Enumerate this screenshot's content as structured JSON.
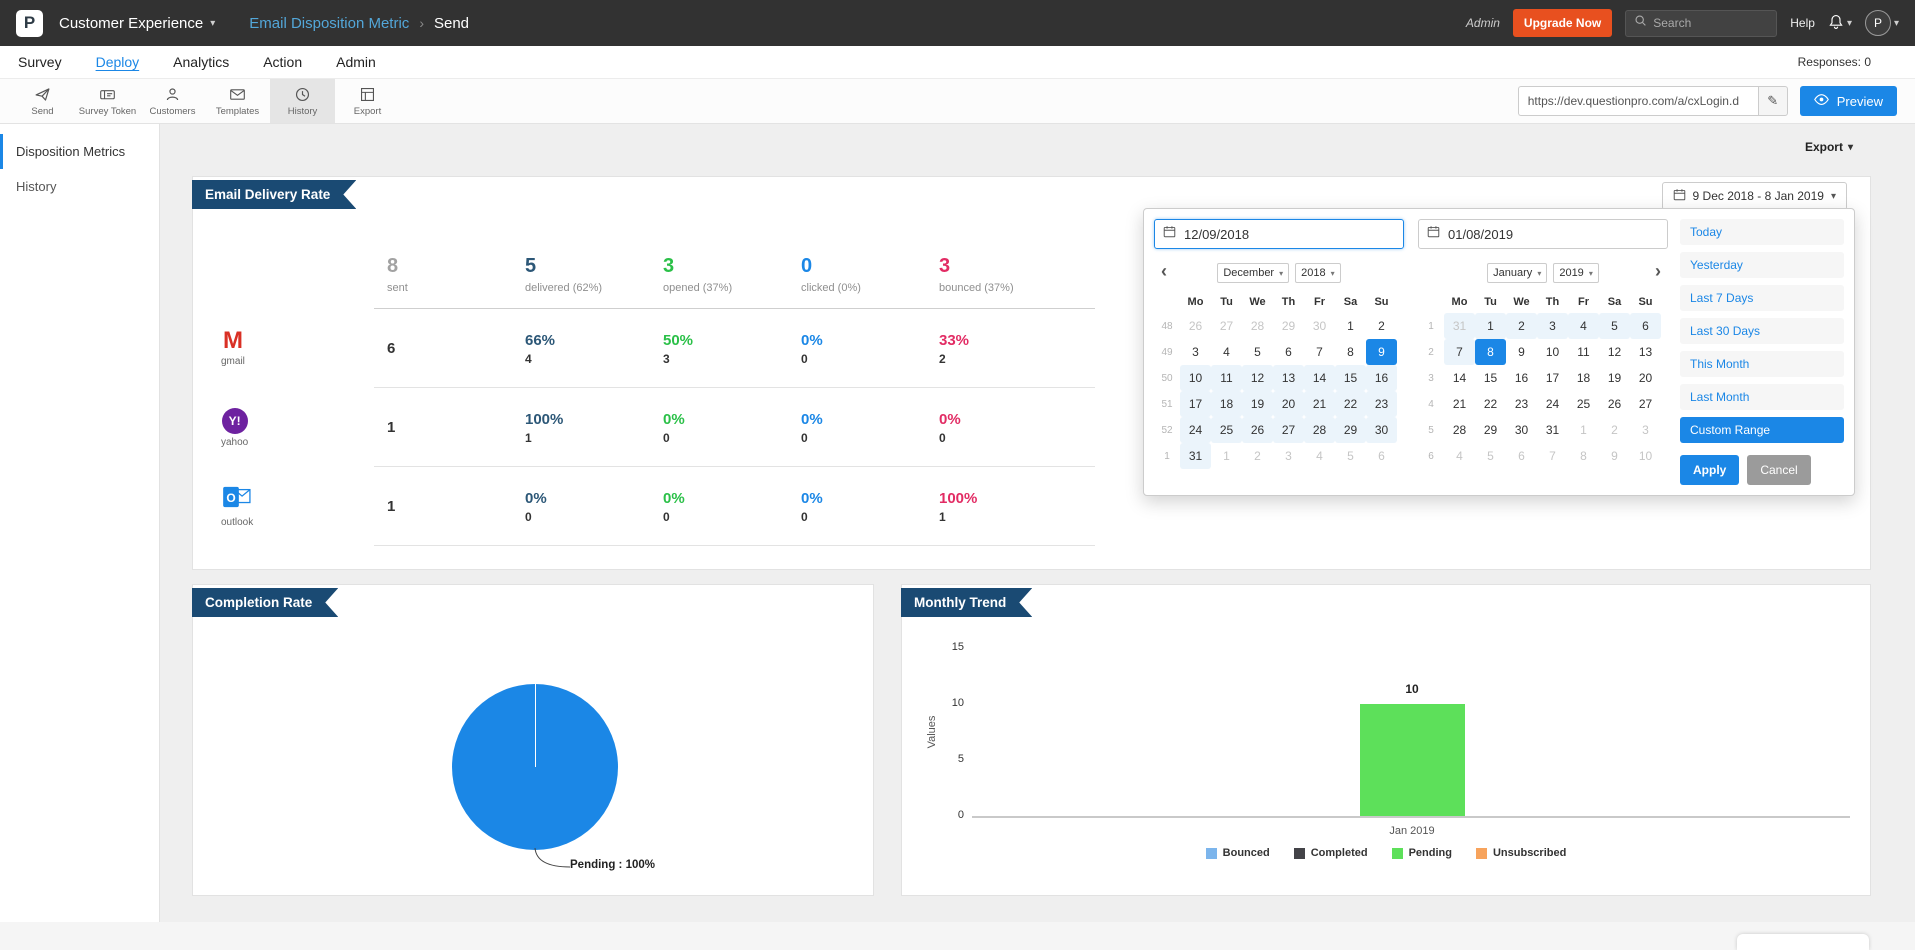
{
  "colors": {
    "accent": "#1b87e6",
    "header_bg": "#323232",
    "upgrade_orange": "#e8501f",
    "ribbon_navy": "#1a4a73",
    "sent_gray": "#a2a2a2",
    "delivered_navy": "#2c5777",
    "opened_green": "#2bc048",
    "clicked_blue": "#1b87e6",
    "bounced_pink": "#e22c64",
    "pie_blue": "#1b87e6",
    "bar_green": "#5de05a"
  },
  "header": {
    "logo_letter": "P",
    "product": "Customer Experience",
    "breadcrumb_title": "Email Disposition Metric",
    "breadcrumb_current": "Send",
    "admin_label": "Admin",
    "upgrade_label": "Upgrade Now",
    "search_placeholder": "Search",
    "help_label": "Help",
    "avatar_initial": "P",
    "icons": [
      "search-icon",
      "bell-icon",
      "avatar",
      "caret-down-icon"
    ]
  },
  "nav": {
    "items": [
      "Survey",
      "Deploy",
      "Analytics",
      "Action",
      "Admin"
    ],
    "active": "Deploy",
    "responses_label": "Responses: 0"
  },
  "toolbar": {
    "items": [
      {
        "label": "Send",
        "icon": "send-icon"
      },
      {
        "label": "Survey Token",
        "icon": "survey-token-icon"
      },
      {
        "label": "Customers",
        "icon": "customers-icon"
      },
      {
        "label": "Templates",
        "icon": "templates-icon"
      },
      {
        "label": "History",
        "icon": "history-icon"
      },
      {
        "label": "Export",
        "icon": "export-icon"
      }
    ],
    "active": "History",
    "url_value": "https://dev.questionpro.com/a/cxLogin.d",
    "preview_label": "Preview"
  },
  "sidebar": {
    "items": [
      "Disposition Metrics",
      "History"
    ],
    "active": "Disposition Metrics"
  },
  "page": {
    "export_label": "Export"
  },
  "delivery": {
    "title": "Email Delivery Rate",
    "date_range_label": "9 Dec 2018 - 8 Jan 2019",
    "summary": [
      {
        "value": "8",
        "label": "sent",
        "cls": "c-sent"
      },
      {
        "value": "5",
        "label": "delivered (62%)",
        "cls": "c-delivered"
      },
      {
        "value": "3",
        "label": "opened (37%)",
        "cls": "c-opened"
      },
      {
        "value": "0",
        "label": "clicked (0%)",
        "cls": "c-clicked"
      },
      {
        "value": "3",
        "label": "bounced (37%)",
        "cls": "c-bounced"
      }
    ],
    "metric_classes": [
      "c-delivered",
      "c-opened",
      "c-clicked",
      "c-bounced"
    ],
    "rows": [
      {
        "provider": "gmail",
        "icon": "gmail-icon",
        "sent": "6",
        "metrics": [
          {
            "pct": "66%",
            "count": "4"
          },
          {
            "pct": "50%",
            "count": "3"
          },
          {
            "pct": "0%",
            "count": "0"
          },
          {
            "pct": "33%",
            "count": "2"
          }
        ]
      },
      {
        "provider": "yahoo",
        "icon": "yahoo-icon",
        "sent": "1",
        "metrics": [
          {
            "pct": "100%",
            "count": "1"
          },
          {
            "pct": "0%",
            "count": "0"
          },
          {
            "pct": "0%",
            "count": "0"
          },
          {
            "pct": "0%",
            "count": "0"
          }
        ]
      },
      {
        "provider": "outlook",
        "icon": "outlook-icon",
        "sent": "1",
        "metrics": [
          {
            "pct": "0%",
            "count": "0"
          },
          {
            "pct": "0%",
            "count": "0"
          },
          {
            "pct": "0%",
            "count": "0"
          },
          {
            "pct": "100%",
            "count": "1"
          }
        ]
      }
    ]
  },
  "datepicker": {
    "start_value": "12/09/2018",
    "end_value": "01/08/2019",
    "day_headers": [
      "Mo",
      "Tu",
      "We",
      "Th",
      "Fr",
      "Sa",
      "Su"
    ],
    "left": {
      "month": "December",
      "year": "2018",
      "weeks": [
        {
          "w": "48",
          "days": [
            [
              "26",
              "m"
            ],
            [
              "27",
              "m"
            ],
            [
              "28",
              "m"
            ],
            [
              "29",
              "m"
            ],
            [
              "30",
              "m"
            ],
            [
              "1",
              ""
            ],
            [
              "2",
              ""
            ]
          ]
        },
        {
          "w": "49",
          "days": [
            [
              "3",
              ""
            ],
            [
              "4",
              ""
            ],
            [
              "5",
              ""
            ],
            [
              "6",
              ""
            ],
            [
              "7",
              ""
            ],
            [
              "8",
              ""
            ],
            [
              "9",
              "s"
            ]
          ]
        },
        {
          "w": "50",
          "days": [
            [
              "10",
              "r"
            ],
            [
              "11",
              "r"
            ],
            [
              "12",
              "r"
            ],
            [
              "13",
              "r"
            ],
            [
              "14",
              "r"
            ],
            [
              "15",
              "r"
            ],
            [
              "16",
              "r"
            ]
          ]
        },
        {
          "w": "51",
          "days": [
            [
              "17",
              "r"
            ],
            [
              "18",
              "r"
            ],
            [
              "19",
              "r"
            ],
            [
              "20",
              "r"
            ],
            [
              "21",
              "r"
            ],
            [
              "22",
              "r"
            ],
            [
              "23",
              "r"
            ]
          ]
        },
        {
          "w": "52",
          "days": [
            [
              "24",
              "r"
            ],
            [
              "25",
              "r"
            ],
            [
              "26",
              "r"
            ],
            [
              "27",
              "r"
            ],
            [
              "28",
              "r"
            ],
            [
              "29",
              "r"
            ],
            [
              "30",
              "r"
            ]
          ]
        },
        {
          "w": "1",
          "days": [
            [
              "31",
              "r"
            ],
            [
              "1",
              "m"
            ],
            [
              "2",
              "m"
            ],
            [
              "3",
              "m"
            ],
            [
              "4",
              "m"
            ],
            [
              "5",
              "m"
            ],
            [
              "6",
              "m"
            ]
          ]
        }
      ]
    },
    "right": {
      "month": "January",
      "year": "2019",
      "weeks": [
        {
          "w": "1",
          "days": [
            [
              "31",
              "mr"
            ],
            [
              "1",
              "r"
            ],
            [
              "2",
              "r"
            ],
            [
              "3",
              "r"
            ],
            [
              "4",
              "r"
            ],
            [
              "5",
              "r"
            ],
            [
              "6",
              "r"
            ]
          ]
        },
        {
          "w": "2",
          "days": [
            [
              "7",
              "r"
            ],
            [
              "8",
              "s"
            ],
            [
              "9",
              ""
            ],
            [
              "10",
              ""
            ],
            [
              "11",
              ""
            ],
            [
              "12",
              ""
            ],
            [
              "13",
              ""
            ]
          ]
        },
        {
          "w": "3",
          "days": [
            [
              "14",
              ""
            ],
            [
              "15",
              ""
            ],
            [
              "16",
              ""
            ],
            [
              "17",
              ""
            ],
            [
              "18",
              ""
            ],
            [
              "19",
              ""
            ],
            [
              "20",
              ""
            ]
          ]
        },
        {
          "w": "4",
          "days": [
            [
              "21",
              ""
            ],
            [
              "22",
              ""
            ],
            [
              "23",
              ""
            ],
            [
              "24",
              ""
            ],
            [
              "25",
              ""
            ],
            [
              "26",
              ""
            ],
            [
              "27",
              ""
            ]
          ]
        },
        {
          "w": "5",
          "days": [
            [
              "28",
              ""
            ],
            [
              "29",
              ""
            ],
            [
              "30",
              ""
            ],
            [
              "31",
              ""
            ],
            [
              "1",
              "m"
            ],
            [
              "2",
              "m"
            ],
            [
              "3",
              "m"
            ]
          ]
        },
        {
          "w": "6",
          "days": [
            [
              "4",
              "m"
            ],
            [
              "5",
              "m"
            ],
            [
              "6",
              "m"
            ],
            [
              "7",
              "m"
            ],
            [
              "8",
              "m"
            ],
            [
              "9",
              "m"
            ],
            [
              "10",
              "m"
            ]
          ]
        }
      ]
    },
    "presets": [
      "Today",
      "Yesterday",
      "Last 7 Days",
      "Last 30 Days",
      "This Month",
      "Last Month",
      "Custom Range"
    ],
    "active_preset": "Custom Range",
    "apply_label": "Apply",
    "cancel_label": "Cancel"
  },
  "completion": {
    "title": "Completion Rate",
    "pie_label": "Pending : 100%",
    "chart_data": {
      "type": "pie",
      "labels": [
        "Pending"
      ],
      "values": [
        100
      ],
      "colors": [
        "#1b87e6"
      ],
      "annotation": "Pending : 100%"
    }
  },
  "monthly": {
    "title": "Monthly Trend",
    "chart_data": {
      "type": "bar",
      "categories": [
        "Jan 2019"
      ],
      "series": [
        {
          "name": "Bounced",
          "values": [
            0
          ],
          "color": "#7cb5ec"
        },
        {
          "name": "Completed",
          "values": [
            0
          ],
          "color": "#434348"
        },
        {
          "name": "Pending",
          "values": [
            10
          ],
          "color": "#5de05a"
        },
        {
          "name": "Unsubscribed",
          "values": [
            0
          ],
          "color": "#f7a35c"
        }
      ],
      "ylabel": "Values",
      "yticks": [
        0,
        5,
        10,
        15
      ],
      "ylim": [
        0,
        15
      ],
      "bar_label": "10",
      "legend_position": "bottom",
      "grid": false
    }
  }
}
